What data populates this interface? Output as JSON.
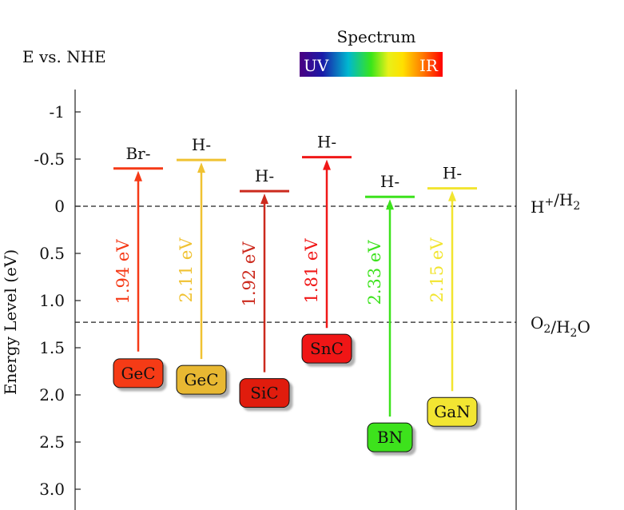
{
  "header": {
    "title": "E vs. NHE",
    "spectrum_title": "Spectrum",
    "spectrum_uv": "UV",
    "spectrum_ir": "IR"
  },
  "axis": {
    "ylabel": "Energy Level (eV)",
    "ticks": [
      {
        "label": "-1",
        "value": -1.0
      },
      {
        "label": "-0.5",
        "value": -0.5
      },
      {
        "label": "0",
        "value": 0.0
      },
      {
        "label": "0.5",
        "value": 0.5
      },
      {
        "label": "1.0",
        "value": 1.0
      },
      {
        "label": "1.5",
        "value": 1.5
      },
      {
        "label": "2.0",
        "value": 2.0
      },
      {
        "label": "2.5",
        "value": 2.5
      },
      {
        "label": "3.0",
        "value": 3.0
      }
    ]
  },
  "reference_lines": [
    {
      "value": 0.0,
      "label_main": "H",
      "label_sup": "+",
      "label_mid": "/H",
      "label_sub": "2",
      "label_end": ""
    },
    {
      "value": 1.23,
      "label_main": "O",
      "label_sup": "",
      "label_mid": "",
      "label_sub": "2",
      "label_end": "/H2O"
    }
  ],
  "materials": [
    {
      "name": "GeC",
      "cb_label": "Br-",
      "gap_label": "1.94 eV",
      "cb": -0.4,
      "vb": 1.54,
      "badge_level": 1.77,
      "color": "#f53a17",
      "badge_color": "#f53a17"
    },
    {
      "name": "GeC",
      "cb_label": "H-",
      "gap_label": "2.11 eV",
      "cb": -0.49,
      "vb": 1.62,
      "badge_level": 1.84,
      "color": "#f0c232",
      "badge_color": "#e8b832"
    },
    {
      "name": "SiC",
      "cb_label": "H-",
      "gap_label": "1.92 eV",
      "cb": -0.16,
      "vb": 1.76,
      "badge_level": 1.98,
      "color": "#cc2a1e",
      "badge_color": "#e01a10"
    },
    {
      "name": "SnC",
      "cb_label": "H-",
      "gap_label": "1.81 eV",
      "cb": -0.52,
      "vb": 1.29,
      "badge_level": 1.51,
      "color": "#f01818",
      "badge_color": "#f01818"
    },
    {
      "name": "BN",
      "cb_label": "H-",
      "gap_label": "2.33 eV",
      "cb": -0.1,
      "vb": 2.23,
      "badge_level": 2.45,
      "color": "#3ce21c",
      "badge_color": "#3ce21c"
    },
    {
      "name": "GaN",
      "cb_label": "H-",
      "gap_label": "2.15 eV",
      "cb": -0.19,
      "vb": 1.96,
      "badge_level": 2.18,
      "color": "#f2e530",
      "badge_color": "#f2e530"
    }
  ]
}
